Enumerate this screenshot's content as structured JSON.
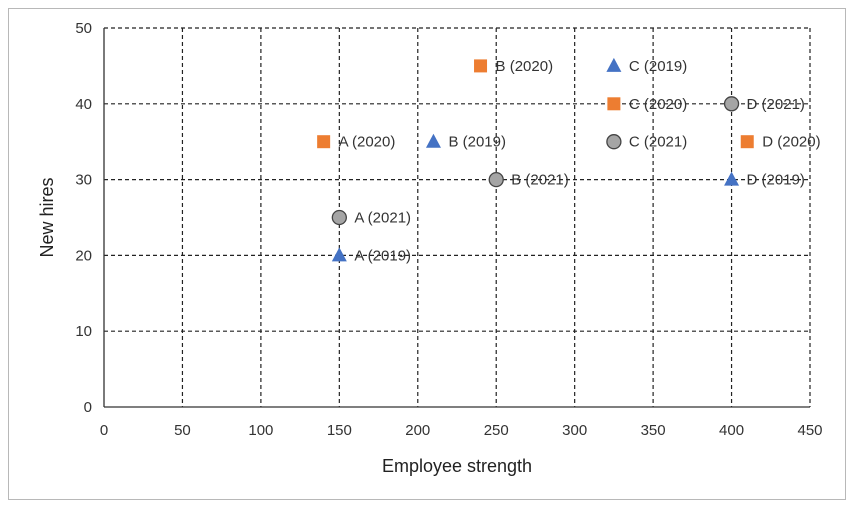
{
  "chart_data": {
    "type": "scatter",
    "title": "",
    "xlabel": "Employee strength",
    "ylabel": "New hires",
    "xlim": [
      0,
      450
    ],
    "ylim": [
      0,
      50
    ],
    "xticks": [
      0,
      50,
      100,
      150,
      200,
      250,
      300,
      350,
      400,
      450
    ],
    "yticks": [
      0,
      10,
      20,
      30,
      40,
      50
    ],
    "grid": true,
    "colors": {
      "square": "#ed7d31",
      "triangle": "#4472c4",
      "circle": "#a5a5a5"
    },
    "points": [
      {
        "label": "A (2019)",
        "marker": "triangle",
        "x": 150,
        "y": 20
      },
      {
        "label": "B (2019)",
        "marker": "triangle",
        "x": 210,
        "y": 35
      },
      {
        "label": "C (2019)",
        "marker": "triangle",
        "x": 325,
        "y": 45
      },
      {
        "label": "D (2019)",
        "marker": "triangle",
        "x": 400,
        "y": 30
      },
      {
        "label": "A (2020)",
        "marker": "square",
        "x": 140,
        "y": 35
      },
      {
        "label": "B (2020)",
        "marker": "square",
        "x": 240,
        "y": 45
      },
      {
        "label": "C (2020)",
        "marker": "square",
        "x": 325,
        "y": 40
      },
      {
        "label": "D (2020)",
        "marker": "square",
        "x": 410,
        "y": 35
      },
      {
        "label": "A (2021)",
        "marker": "circle",
        "x": 150,
        "y": 25
      },
      {
        "label": "B (2021)",
        "marker": "circle",
        "x": 250,
        "y": 30
      },
      {
        "label": "C (2021)",
        "marker": "circle",
        "x": 325,
        "y": 35
      },
      {
        "label": "D (2021)",
        "marker": "circle",
        "x": 400,
        "y": 40
      }
    ]
  }
}
